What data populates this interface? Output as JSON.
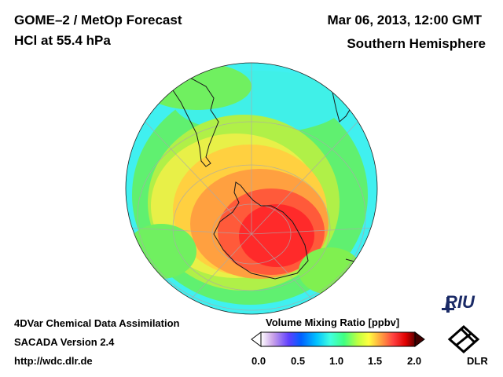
{
  "header": {
    "title_line1": "GOME–2 / MetOp Forecast",
    "title_line2": "HCl at 55.4 hPa",
    "datetime": "Mar 06, 2013, 12:00 GMT",
    "hemisphere": "Southern Hemisphere"
  },
  "footer": {
    "line1": "4DVar Chemical Data Assimilation",
    "line2": "SACADA Version 2.4",
    "line3": "http://wdc.dlr.de"
  },
  "colorbar": {
    "title": "Volume Mixing Ratio [ppbv]",
    "ticks": [
      "0.0",
      "0.5",
      "1.0",
      "1.5",
      "2.0"
    ],
    "range": [
      0.0,
      2.0
    ],
    "colors": [
      "#ffffff",
      "#c8a0e8",
      "#6040ff",
      "#0060ff",
      "#00c0ff",
      "#40ffe0",
      "#40ff80",
      "#c0ff40",
      "#ffff40",
      "#ffa040",
      "#ff4040",
      "#e00000",
      "#600000"
    ]
  },
  "logos": {
    "riu": "RIU",
    "dlr": "DLR"
  },
  "map": {
    "background_color": "#40f0f0",
    "high_color": "#ff3030"
  }
}
